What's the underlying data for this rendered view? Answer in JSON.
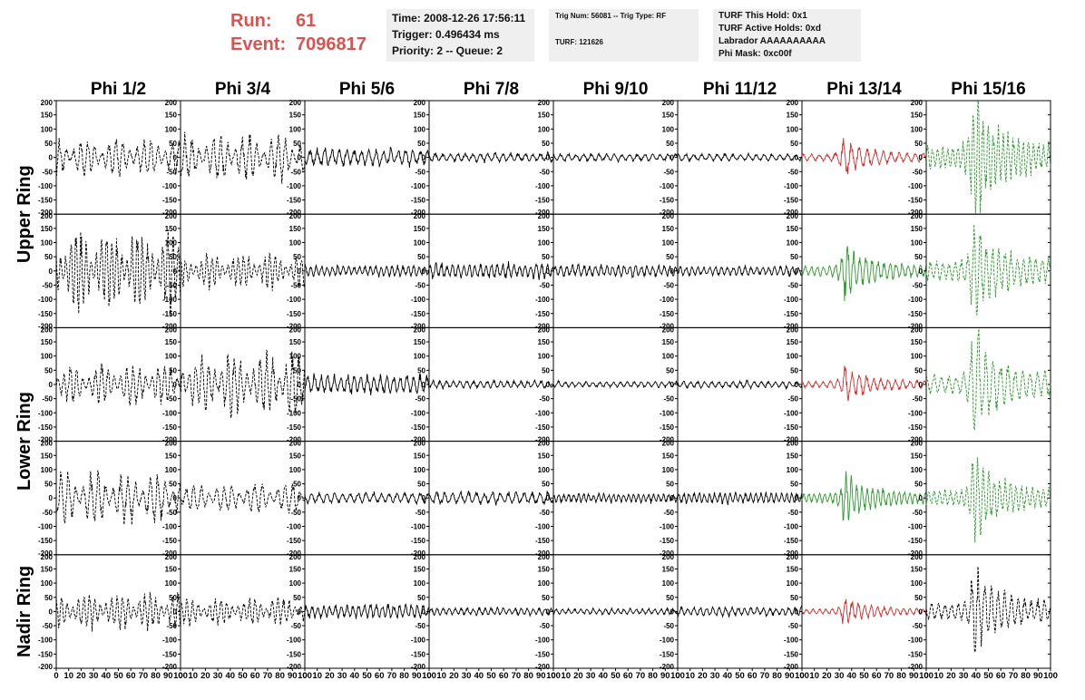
{
  "header": {
    "run_label": "Run:",
    "run_value": "61",
    "event_label": "Event:",
    "event_value": "7096817",
    "info1": [
      "Time: 2008-12-26 17:56:11",
      "Trigger: 0.496434 ms",
      "Priority: 2 -- Queue: 2"
    ],
    "info2": [
      "Trig Num: 56081 -- Trig Type: RF",
      "TURF: 121626"
    ],
    "info3": [
      "TURF This Hold: 0x1",
      "TURF Active Holds: 0xd",
      "Labrador AAAAAAAAAA",
      "Phi Mask: 0xc00f"
    ]
  },
  "colors": {
    "run_text": "#d9534f",
    "panel_bg": "#efefef",
    "trace_black": "#000000",
    "trace_red": "#d42a2a",
    "trace_green": "#2e9a2e"
  },
  "chart_data": {
    "type": "line",
    "columns": [
      "Phi 1/2",
      "Phi 3/4",
      "Phi 5/6",
      "Phi 7/8",
      "Phi 9/10",
      "Phi 11/12",
      "Phi 13/14",
      "Phi 15/16"
    ],
    "ring_labels": [
      "Upper Ring",
      "Lower Ring",
      "Nadir Ring"
    ],
    "y_ticks": [
      "200",
      "150",
      "100",
      "50",
      "0",
      "-50",
      "-100",
      "-150",
      "-200"
    ],
    "nadir_y_ticks": [
      "200",
      "150",
      "100",
      "50",
      "0",
      "-50",
      "-100",
      "-150",
      "-200"
    ],
    "x_ticks": [
      "0",
      "10",
      "20",
      "30",
      "40",
      "50",
      "60",
      "70",
      "80",
      "90",
      "100"
    ],
    "xlim": [
      0,
      100
    ],
    "ylim": [
      -200,
      200
    ],
    "grid": false,
    "rows": [
      [
        {
          "color": "black",
          "style": "dashed",
          "amp": 65,
          "env": "beat"
        },
        {
          "color": "black",
          "style": "dashed",
          "amp": 80,
          "env": "beat"
        },
        {
          "color": "black",
          "style": "solid",
          "amp": 35,
          "env": "noise"
        },
        {
          "color": "black",
          "style": "solid",
          "amp": 18,
          "env": "noise"
        },
        {
          "color": "black",
          "style": "solid",
          "amp": 15,
          "env": "noise"
        },
        {
          "color": "black",
          "style": "solid",
          "amp": 14,
          "env": "noise"
        },
        {
          "color": "red",
          "style": "solid",
          "amp": 55,
          "env": "pulse",
          "peak_x": 35
        },
        {
          "color": "green",
          "style": "dashed",
          "amp": 180,
          "env": "pulse",
          "peak_x": 40
        }
      ],
      [
        {
          "color": "black",
          "style": "dashed",
          "amp": 140,
          "env": "beat"
        },
        {
          "color": "black",
          "style": "dashed",
          "amp": 60,
          "env": "beat"
        },
        {
          "color": "black",
          "style": "solid",
          "amp": 22,
          "env": "noise"
        },
        {
          "color": "black",
          "style": "solid",
          "amp": 30,
          "env": "noise"
        },
        {
          "color": "black",
          "style": "solid",
          "amp": 25,
          "env": "noise"
        },
        {
          "color": "black",
          "style": "solid",
          "amp": 20,
          "env": "noise"
        },
        {
          "color": "green",
          "style": "solid",
          "amp": 80,
          "env": "pulse",
          "peak_x": 36
        },
        {
          "color": "green",
          "style": "dashed",
          "amp": 150,
          "env": "pulse",
          "peak_x": 40
        }
      ],
      [
        {
          "color": "black",
          "style": "dashed",
          "amp": 70,
          "env": "beat"
        },
        {
          "color": "black",
          "style": "dashed",
          "amp": 110,
          "env": "beat"
        },
        {
          "color": "black",
          "style": "solid",
          "amp": 40,
          "env": "noise"
        },
        {
          "color": "black",
          "style": "solid",
          "amp": 15,
          "env": "noise"
        },
        {
          "color": "black",
          "style": "solid",
          "amp": 12,
          "env": "noise"
        },
        {
          "color": "black",
          "style": "solid",
          "amp": 14,
          "env": "noise"
        },
        {
          "color": "red",
          "style": "solid",
          "amp": 50,
          "env": "pulse",
          "peak_x": 36
        },
        {
          "color": "green",
          "style": "dashed",
          "amp": 150,
          "env": "pulse",
          "peak_x": 40
        }
      ],
      [
        {
          "color": "black",
          "style": "dashed",
          "amp": 90,
          "env": "beat"
        },
        {
          "color": "black",
          "style": "dashed",
          "amp": 55,
          "env": "beat"
        },
        {
          "color": "black",
          "style": "solid",
          "amp": 22,
          "env": "noise"
        },
        {
          "color": "black",
          "style": "solid",
          "amp": 25,
          "env": "noise"
        },
        {
          "color": "black",
          "style": "solid",
          "amp": 18,
          "env": "noise"
        },
        {
          "color": "black",
          "style": "solid",
          "amp": 22,
          "env": "noise"
        },
        {
          "color": "green",
          "style": "solid",
          "amp": 75,
          "env": "pulse",
          "peak_x": 36
        },
        {
          "color": "green",
          "style": "dashed",
          "amp": 120,
          "env": "pulse",
          "peak_x": 40
        }
      ],
      [
        {
          "color": "black",
          "style": "dashed",
          "amp": 65,
          "env": "beat"
        },
        {
          "color": "black",
          "style": "dashed",
          "amp": 50,
          "env": "beat"
        },
        {
          "color": "black",
          "style": "solid",
          "amp": 30,
          "env": "noise"
        },
        {
          "color": "black",
          "style": "solid",
          "amp": 15,
          "env": "noise"
        },
        {
          "color": "black",
          "style": "solid",
          "amp": 12,
          "env": "noise"
        },
        {
          "color": "black",
          "style": "solid",
          "amp": 18,
          "env": "noise"
        },
        {
          "color": "red",
          "style": "solid",
          "amp": 40,
          "env": "pulse",
          "peak_x": 36
        },
        {
          "color": "black",
          "style": "dashed",
          "amp": 130,
          "env": "pulse",
          "peak_x": 40
        }
      ]
    ]
  }
}
